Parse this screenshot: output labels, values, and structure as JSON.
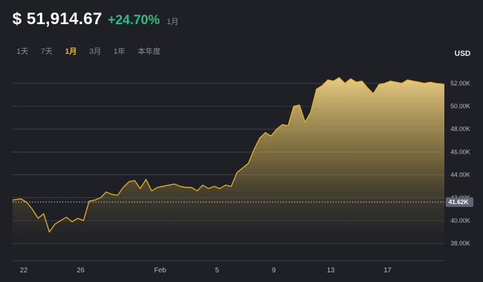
{
  "header": {
    "price": "$ 51,914.67",
    "change": "+24.70%",
    "period": "1月"
  },
  "tabs": [
    {
      "label": "1天",
      "active": false
    },
    {
      "label": "7天",
      "active": false
    },
    {
      "label": "1月",
      "active": true
    },
    {
      "label": "3月",
      "active": false
    },
    {
      "label": "1年",
      "active": false
    },
    {
      "label": "本年度",
      "active": false
    }
  ],
  "chart_data": {
    "type": "area",
    "unit_label": "USD",
    "current_label": "41.62K",
    "current_value": 41620,
    "ylim": [
      36500,
      53500
    ],
    "yticks": [
      {
        "value": 38000,
        "label": "38.00K"
      },
      {
        "value": 40000,
        "label": "40.00K"
      },
      {
        "value": 42000,
        "label": "42.00K"
      },
      {
        "value": 44000,
        "label": "44.00K"
      },
      {
        "value": 46000,
        "label": "46.00K"
      },
      {
        "value": 48000,
        "label": "48.00K"
      },
      {
        "value": 50000,
        "label": "50.00K"
      },
      {
        "value": 52000,
        "label": "52.00K"
      }
    ],
    "xlim": [
      21.8,
      29.4
    ],
    "xticks": [
      {
        "value": 22,
        "label": "22"
      },
      {
        "value": 23,
        "label": "26"
      },
      {
        "value": 24.4,
        "label": "Feb"
      },
      {
        "value": 25.4,
        "label": "5"
      },
      {
        "value": 26.4,
        "label": "9"
      },
      {
        "value": 27.4,
        "label": "13"
      },
      {
        "value": 28.4,
        "label": "17"
      }
    ],
    "grid": true,
    "color": "#f0b90b",
    "x": [
      21.8,
      21.95,
      22.05,
      22.15,
      22.25,
      22.35,
      22.45,
      22.55,
      22.65,
      22.75,
      22.85,
      22.95,
      23.05,
      23.15,
      23.25,
      23.35,
      23.45,
      23.55,
      23.65,
      23.75,
      23.85,
      23.95,
      24.05,
      24.15,
      24.25,
      24.35,
      24.45,
      24.55,
      24.65,
      24.75,
      24.85,
      24.95,
      25.05,
      25.15,
      25.25,
      25.35,
      25.45,
      25.55,
      25.65,
      25.75,
      25.85,
      25.95,
      26.05,
      26.15,
      26.25,
      26.35,
      26.45,
      26.55,
      26.65,
      26.75,
      26.85,
      26.95,
      27.05,
      27.15,
      27.25,
      27.35,
      27.45,
      27.55,
      27.65,
      27.75,
      27.85,
      27.95,
      28.05,
      28.15,
      28.25,
      28.35,
      28.45,
      28.55,
      28.65,
      28.75,
      28.85,
      28.95,
      29.05,
      29.15,
      29.25,
      29.4
    ],
    "y": [
      41800,
      41900,
      41600,
      41000,
      40200,
      40600,
      39000,
      39700,
      40000,
      40300,
      39900,
      40200,
      40000,
      41700,
      41800,
      42000,
      42500,
      42300,
      42200,
      42900,
      43400,
      43500,
      42800,
      43600,
      42600,
      42900,
      43000,
      43100,
      43200,
      43000,
      42900,
      42900,
      42600,
      43100,
      42800,
      43000,
      42800,
      43100,
      43000,
      44200,
      44600,
      45000,
      46200,
      47200,
      47700,
      47400,
      48000,
      48400,
      48300,
      50000,
      50100,
      48600,
      49500,
      51500,
      51800,
      52300,
      52200,
      52500,
      52000,
      52400,
      52100,
      52200,
      51600,
      51100,
      51900,
      52000,
      52200,
      52100,
      52000,
      52300,
      52200,
      52100,
      52000,
      52100,
      52000,
      51900
    ]
  }
}
